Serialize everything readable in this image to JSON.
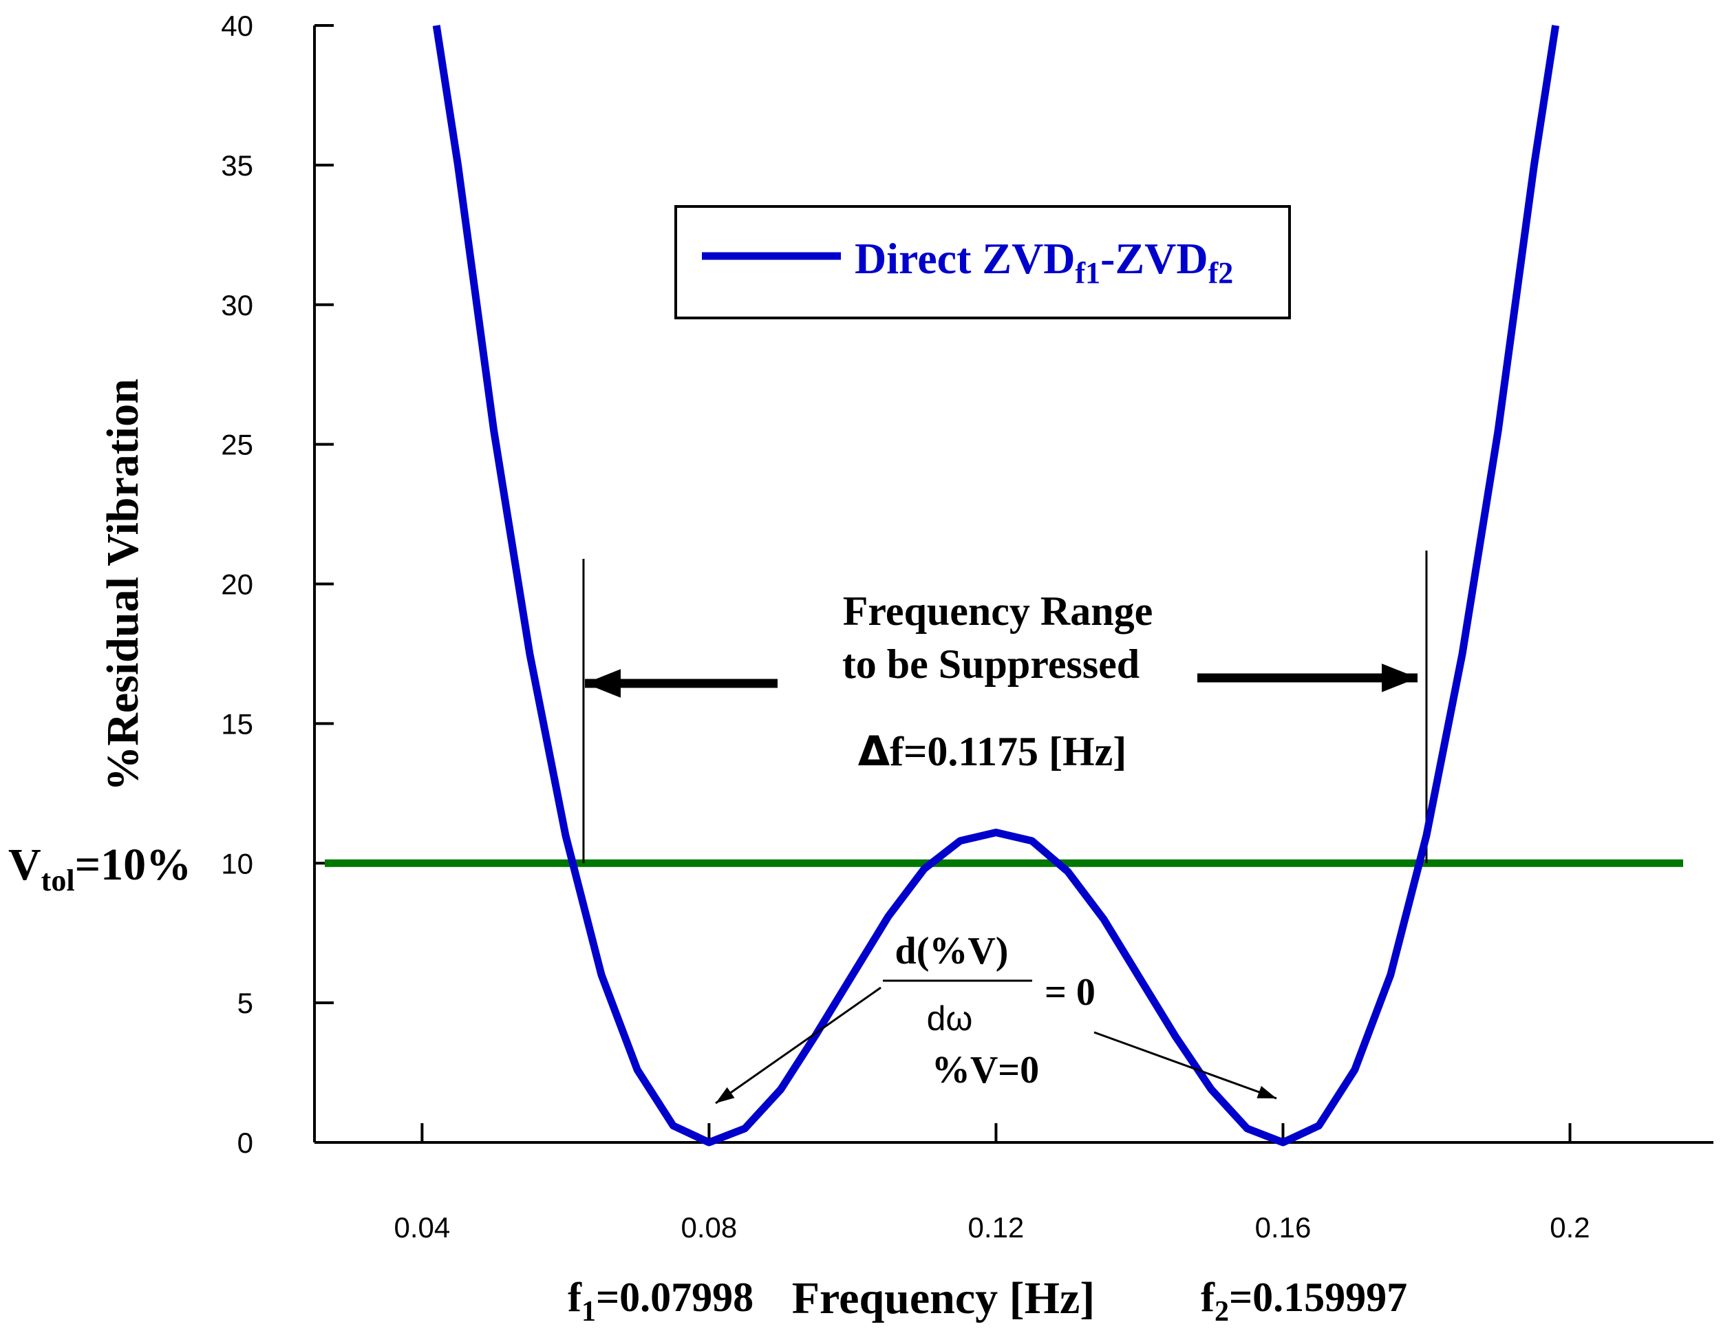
{
  "chart_data": {
    "type": "line",
    "title": "",
    "xlabel": "Frequency [Hz]",
    "ylabel": "%Residual Vibration",
    "xlim": [
      0.025,
      0.22
    ],
    "ylim": [
      0,
      40
    ],
    "x_ticks": [
      0.04,
      0.08,
      0.12,
      0.16,
      0.2
    ],
    "x_tick_labels": [
      "0.04",
      "0.08",
      "0.12",
      "0.16",
      "0.2"
    ],
    "y_ticks": [
      0,
      5,
      10,
      15,
      20,
      25,
      30,
      35,
      40
    ],
    "y_tick_labels": [
      "0",
      "5",
      "10",
      "15",
      "20",
      "25",
      "30",
      "35",
      "40"
    ],
    "series": [
      {
        "name": "Direct ZVD_f1-ZVD_f2",
        "color": "#0000cc",
        "x": [
          0.042,
          0.045,
          0.05,
          0.055,
          0.06,
          0.065,
          0.07,
          0.075,
          0.08,
          0.085,
          0.09,
          0.095,
          0.1,
          0.105,
          0.11,
          0.115,
          0.12,
          0.125,
          0.13,
          0.135,
          0.14,
          0.145,
          0.15,
          0.155,
          0.16,
          0.165,
          0.17,
          0.175,
          0.18,
          0.185,
          0.19,
          0.195,
          0.198
        ],
        "y": [
          40.0,
          35.0,
          25.5,
          17.5,
          11.0,
          6.0,
          2.6,
          0.6,
          0.0,
          0.5,
          1.9,
          3.9,
          6.0,
          8.1,
          9.8,
          10.8,
          11.1,
          10.8,
          9.7,
          8.0,
          5.9,
          3.8,
          1.9,
          0.5,
          0.0,
          0.6,
          2.6,
          6.0,
          11.0,
          17.5,
          25.5,
          35.0,
          40.0
        ]
      }
    ],
    "threshold": {
      "value": 10,
      "color": "#007700",
      "label_main": "V",
      "label_sub": "tol",
      "label_rest": "=10%"
    },
    "legend": {
      "placement": "top-center",
      "text_main": "Direct ZVD",
      "sub1": "f1",
      "mid": "-ZVD",
      "sub2": "f2"
    },
    "annotations": {
      "range_line1": "Frequency Range",
      "range_line2": "to be Suppressed",
      "delta_symbol": "Δ",
      "delta_text": "f=0.1175 [Hz]",
      "range_bounds": [
        0.0625,
        0.18
      ],
      "derivative_numerator": "d(%V)",
      "derivative_denominator": "dω",
      "derivative_equals": "= 0",
      "zero_vibration": "%V=0",
      "f1_main": "f",
      "f1_sub": "1",
      "f1_value": "=0.07998",
      "f2_main": "f",
      "f2_sub": "2",
      "f2_value": "=0.159997"
    }
  }
}
